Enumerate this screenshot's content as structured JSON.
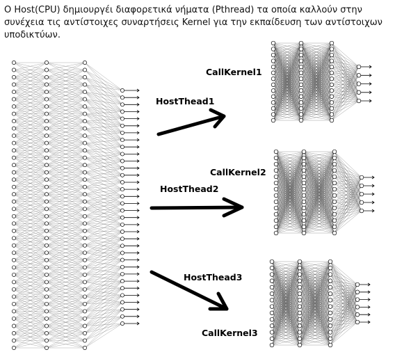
{
  "caption": "Ο Host(CPU) δημιουργέι διαφορετικά νήματα (Pthread) τα οποία καλλούν στην συνέχεια τις αντίστοιχες συναρτήσεις Kernel για την εκπαίδευση των αντίστοιχων υποδικτύων.",
  "labels": {
    "callkernel1": "CallKernel1",
    "callkernel2": "CallKernel2",
    "callkernel3": "CallKernel3",
    "hostthread1": "HostThead1",
    "hostthread2": "HostThead2",
    "hostthread3": "HostThead3"
  },
  "colors": {
    "ink": "#000000",
    "net_line": "#555555",
    "node_fill": "#ffffff"
  }
}
